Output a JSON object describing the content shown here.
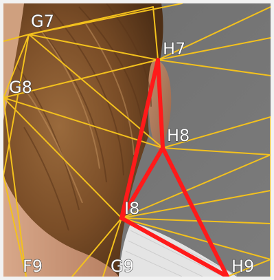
{
  "labels": {
    "g7": "G7",
    "h7": "H7",
    "g8": "G8",
    "h8": "H8",
    "i8": "I8",
    "f9": "F9",
    "g9": "G9",
    "h9": "H9"
  },
  "colors": {
    "mesh_lines": "#f3c11d",
    "highlight_triangles": "#ff1a1a",
    "background_gray": "#767676",
    "hair_brown": "#8a5a2e",
    "skin_tone": "#c99475",
    "shirt_white": "#e4e4e4",
    "frame": "#f2f2f2"
  }
}
